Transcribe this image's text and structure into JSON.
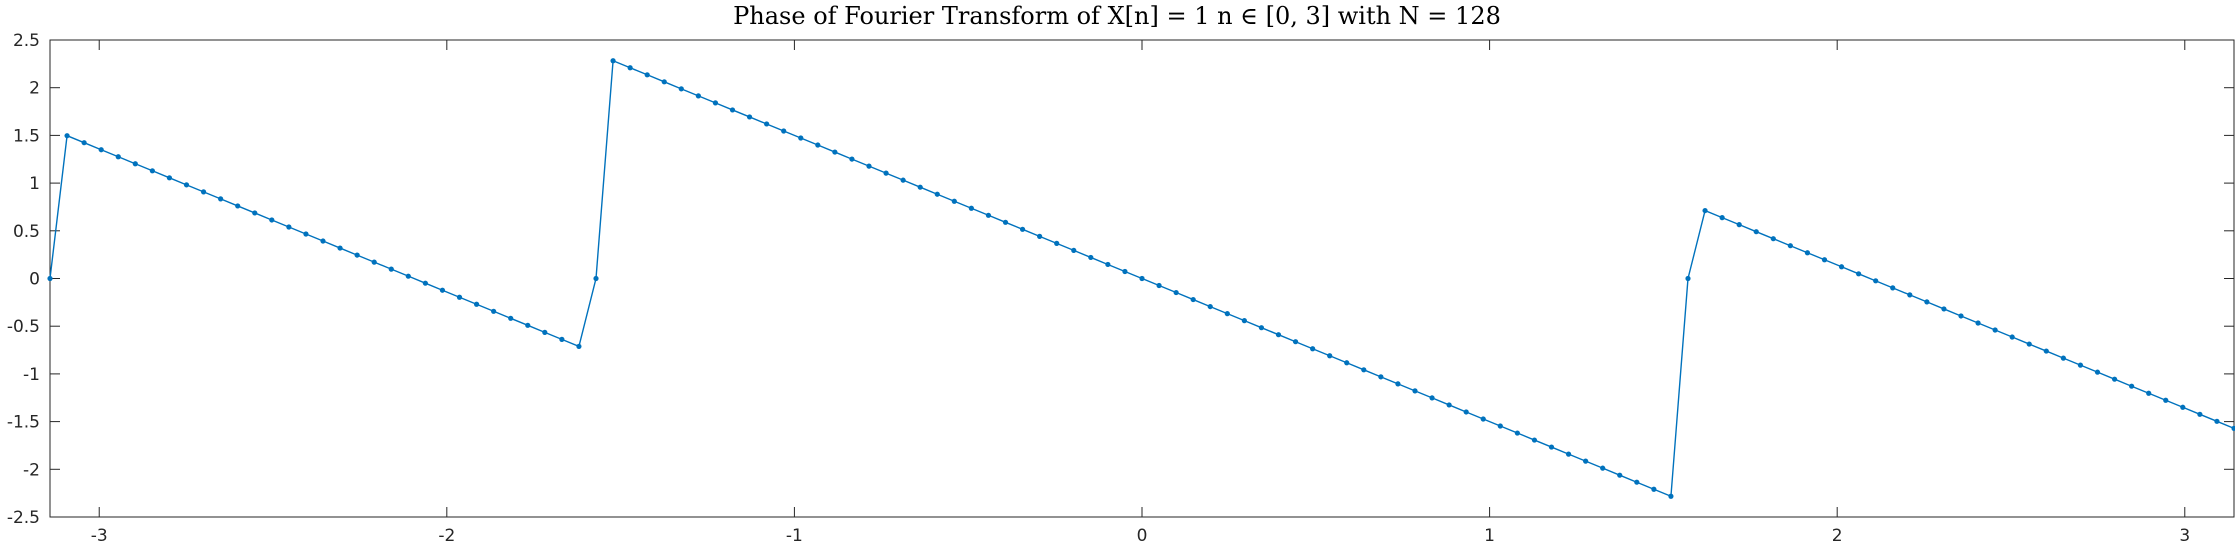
{
  "chart_data": {
    "type": "line",
    "title": "Phase of Fourier Transform of X[n] = 1  n ∈ [0, 3] with N =  128",
    "xlabel": "",
    "ylabel": "",
    "xlim": [
      -3.1416,
      3.1416
    ],
    "ylim": [
      -2.5,
      2.5
    ],
    "xticks": [
      -3,
      -2,
      -1,
      0,
      1,
      2,
      3
    ],
    "xtick_labels": [
      "-3",
      "-2",
      "-1",
      "0",
      "1",
      "2",
      "3"
    ],
    "yticks": [
      -2.5,
      -2,
      -1.5,
      -1,
      -0.5,
      0,
      0.5,
      1,
      1.5,
      2,
      2.5
    ],
    "ytick_labels": [
      "-2.5",
      "-2",
      "-1.5",
      "-1",
      "-0.5",
      "0",
      "0.5",
      "1",
      "1.5",
      "2",
      "2.5"
    ],
    "grid": false,
    "legend": "none",
    "series": [
      {
        "color": "#0072BD",
        "marker": "dot",
        "x": [
          -3.1416,
          -3.0925,
          -3.0434,
          -2.9943,
          -2.9452,
          -2.8962,
          -2.8471,
          -2.798,
          -2.7489,
          -2.6998,
          -2.6507,
          -2.6016,
          -2.5525,
          -2.5035,
          -2.4544,
          -2.4053,
          -2.3562,
          -2.3071,
          -2.258,
          -2.2089,
          -2.1598,
          -2.1108,
          -2.0617,
          -2.0126,
          -1.9635,
          -1.9144,
          -1.8653,
          -1.8162,
          -1.7671,
          -1.7181,
          -1.669,
          -1.6199,
          -1.5708,
          -1.5217,
          -1.4726,
          -1.4235,
          -1.3744,
          -1.3254,
          -1.2763,
          -1.2272,
          -1.1781,
          -1.129,
          -1.0799,
          -1.0308,
          -0.9817,
          -0.9327,
          -0.8836,
          -0.8345,
          -0.7854,
          -0.7363,
          -0.6872,
          -0.6381,
          -0.589,
          -0.54,
          -0.4909,
          -0.4418,
          -0.3927,
          -0.3436,
          -0.2945,
          -0.2454,
          -0.1963,
          -0.1473,
          -0.0982,
          -0.0491,
          0.0,
          0.0491,
          0.0982,
          0.1473,
          0.1963,
          0.2454,
          0.2945,
          0.3436,
          0.3927,
          0.4418,
          0.4909,
          0.54,
          0.589,
          0.6381,
          0.6872,
          0.7363,
          0.7854,
          0.8345,
          0.8836,
          0.9327,
          0.9817,
          1.0308,
          1.0799,
          1.129,
          1.1781,
          1.2272,
          1.2763,
          1.3254,
          1.3744,
          1.4235,
          1.4726,
          1.5217,
          1.5708,
          1.6199,
          1.669,
          1.7181,
          1.7671,
          1.8162,
          1.8653,
          1.9144,
          1.9635,
          2.0126,
          2.0617,
          2.1108,
          2.1598,
          2.2089,
          2.258,
          2.3071,
          2.3562,
          2.4053,
          2.4544,
          2.5035,
          2.5525,
          2.6016,
          2.6507,
          2.6998,
          2.7489,
          2.798,
          2.8471,
          2.8962,
          2.9452,
          2.9943,
          3.0434,
          3.0925,
          3.1416
        ],
        "y": [
          0.0,
          1.4972,
          1.4236,
          1.3499,
          1.2763,
          1.2027,
          1.129,
          1.0554,
          0.9817,
          0.9081,
          0.8345,
          0.7608,
          0.6872,
          0.6136,
          0.5399,
          0.4663,
          0.3927,
          0.319,
          0.2454,
          0.1718,
          0.0981,
          0.0245,
          -0.0491,
          -0.1228,
          -0.1964,
          -0.27,
          -0.3437,
          -0.4173,
          -0.4909,
          -0.5646,
          -0.6382,
          -0.7118,
          0.0,
          2.2826,
          2.2089,
          2.1353,
          2.0617,
          1.988,
          1.9144,
          1.8408,
          1.7671,
          1.6935,
          1.6199,
          1.5462,
          1.4726,
          1.399,
          1.3253,
          1.2517,
          1.1781,
          1.1044,
          1.0308,
          0.9572,
          0.8835,
          0.8099,
          0.7363,
          0.6626,
          0.589,
          0.5154,
          0.4417,
          0.3681,
          0.2945,
          0.2208,
          0.1472,
          0.0736,
          0.0,
          -0.0736,
          -0.1472,
          -0.2208,
          -0.2945,
          -0.3681,
          -0.4417,
          -0.5154,
          -0.589,
          -0.6626,
          -0.7363,
          -0.8099,
          -0.8835,
          -0.9572,
          -1.0308,
          -1.1044,
          -1.1781,
          -1.2517,
          -1.3253,
          -1.399,
          -1.4726,
          -1.5462,
          -1.6199,
          -1.6935,
          -1.7671,
          -1.8408,
          -1.9144,
          -1.988,
          -2.0617,
          -2.1353,
          -2.2089,
          -2.2826,
          0.0,
          0.7118,
          0.6382,
          0.5646,
          0.4909,
          0.4173,
          0.3437,
          0.27,
          0.1964,
          0.1228,
          0.0491,
          -0.0245,
          -0.0981,
          -0.1718,
          -0.2454,
          -0.319,
          -0.3927,
          -0.4663,
          -0.5399,
          -0.6136,
          -0.6872,
          -0.7608,
          -0.8345,
          -0.9081,
          -0.9817,
          -1.0554,
          -1.129,
          -1.2027,
          -1.2763,
          -1.3499,
          -1.4236,
          -1.4972,
          -1.5708
        ]
      }
    ]
  }
}
